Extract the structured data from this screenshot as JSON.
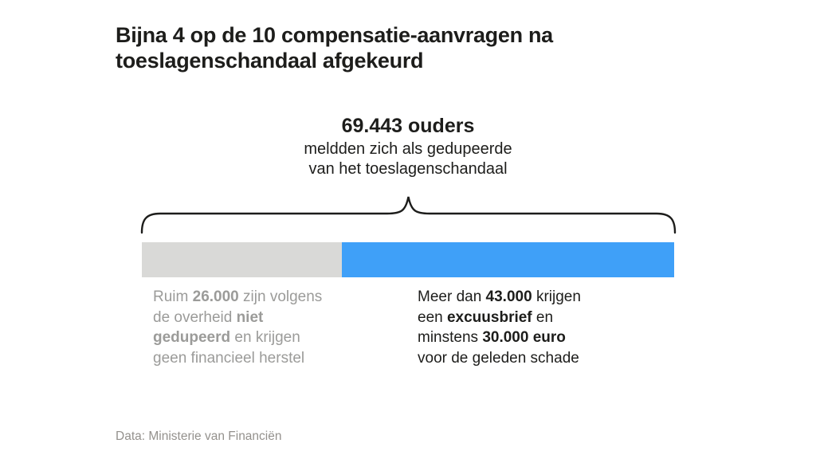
{
  "title": {
    "line1": "Bijna 4 op de 10 compensatie-aanvragen na",
    "line2": "toeslagenschandaal afgekeurd"
  },
  "stat": {
    "value": "69.443 ouders",
    "line2": "meldden zich als gedupeerde",
    "line3": "van het toeslagenschandaal"
  },
  "chart_data": {
    "type": "bar",
    "orientation": "horizontal-stacked",
    "title": "Bijna 4 op de 10 compensatie-aanvragen na toeslagenschandaal afgekeurd",
    "total": 69443,
    "total_label": "69.443 ouders meldden zich als gedupeerde van het toeslagenschandaal",
    "segments": [
      {
        "name": "afgekeurd - niet gedupeerd",
        "value": 26000,
        "value_label": "Ruim 26.000",
        "percent": 37.6,
        "color": "#d9d9d7"
      },
      {
        "name": "erkend gedupeerd - compensatie",
        "value": 43000,
        "value_label": "Meer dan 43.000",
        "percent": 62.4,
        "color": "#3fa0f8"
      }
    ],
    "annotations": [
      "Ruim 26.000 zijn volgens de overheid niet gedupeerd en krijgen geen financieel herstel",
      "Meer dan 43.000 krijgen een excuusbrief en minstens 30.000 euro voor de geleden schade"
    ],
    "grid": false,
    "legend_position": "below"
  },
  "captions": {
    "left": {
      "color": "#9b9b99",
      "lines": [
        [
          {
            "t": "Ruim ",
            "b": 0
          },
          {
            "t": "26.000",
            "b": 1
          },
          {
            "t": " zijn volgens",
            "b": 0
          }
        ],
        [
          {
            "t": "de overheid ",
            "b": 0
          },
          {
            "t": "niet",
            "b": 1
          }
        ],
        [
          {
            "t": "gedupeerd",
            "b": 1
          },
          {
            "t": " en krijgen",
            "b": 0
          }
        ],
        [
          {
            "t": "geen financieel herstel",
            "b": 0
          }
        ]
      ]
    },
    "right": {
      "color": "#1d1d1b",
      "lines": [
        [
          {
            "t": "Meer dan ",
            "b": 0
          },
          {
            "t": "43.000",
            "b": 1
          },
          {
            "t": " krijgen",
            "b": 0
          }
        ],
        [
          {
            "t": "een ",
            "b": 0
          },
          {
            "t": "excuusbrief",
            "b": 1
          },
          {
            "t": " en",
            "b": 0
          }
        ],
        [
          {
            "t": "minstens ",
            "b": 0
          },
          {
            "t": "30.000 euro",
            "b": 1
          }
        ],
        [
          {
            "t": "voor de geleden schade",
            "b": 0
          }
        ]
      ]
    }
  },
  "source": "Data: Ministerie van Financiën",
  "colors": {
    "text_dark": "#1d1d1b",
    "text_gray": "#9b9b99",
    "bar_gray": "#d9d9d7",
    "bar_blue": "#3fa0f8"
  }
}
